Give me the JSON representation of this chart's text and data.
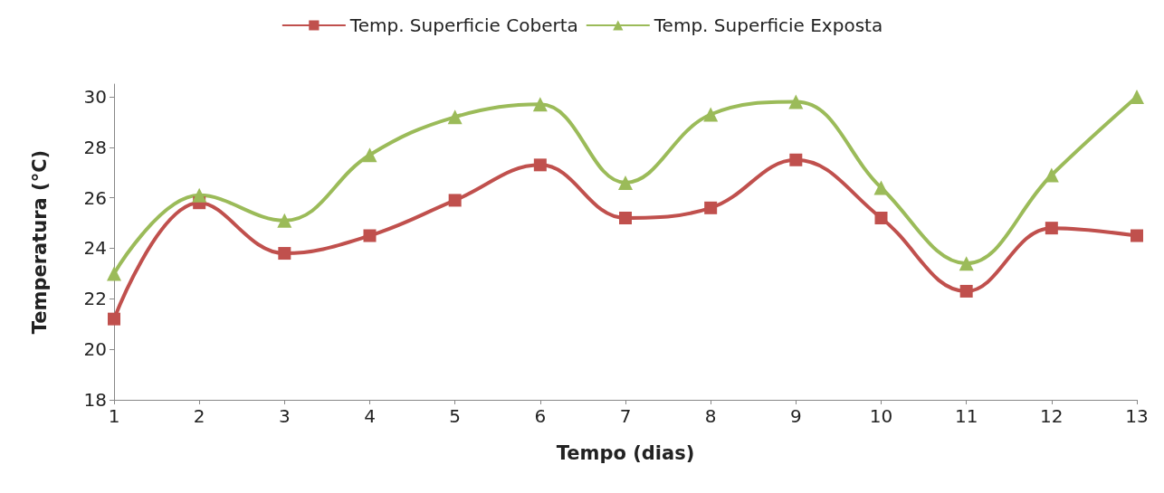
{
  "chart_data": {
    "type": "line",
    "xlabel": "Tempo (dias)",
    "ylabel": "Temperatura (°C)",
    "x": [
      1,
      2,
      3,
      4,
      5,
      6,
      7,
      8,
      9,
      10,
      11,
      12,
      13
    ],
    "xlim": [
      1,
      13
    ],
    "xticks": [
      1,
      2,
      3,
      4,
      5,
      6,
      7,
      8,
      9,
      10,
      11,
      12,
      13
    ],
    "ylim": [
      18,
      30.5
    ],
    "yticks": [
      18,
      20,
      22,
      24,
      26,
      28,
      30
    ],
    "grid": false,
    "legend": "top",
    "series": [
      {
        "name": "Temp. Superficie Coberta",
        "color": "#c0504d",
        "marker": "square",
        "values": [
          21.2,
          25.8,
          23.8,
          24.5,
          25.9,
          27.3,
          25.2,
          25.6,
          27.5,
          25.2,
          22.3,
          24.8,
          24.5
        ]
      },
      {
        "name": "Temp. Superficie Exposta",
        "color": "#9bbb59",
        "marker": "triangle",
        "values": [
          23.0,
          26.1,
          25.1,
          27.7,
          29.2,
          29.7,
          26.6,
          29.3,
          29.8,
          26.4,
          23.4,
          26.9,
          30.0
        ]
      }
    ]
  }
}
